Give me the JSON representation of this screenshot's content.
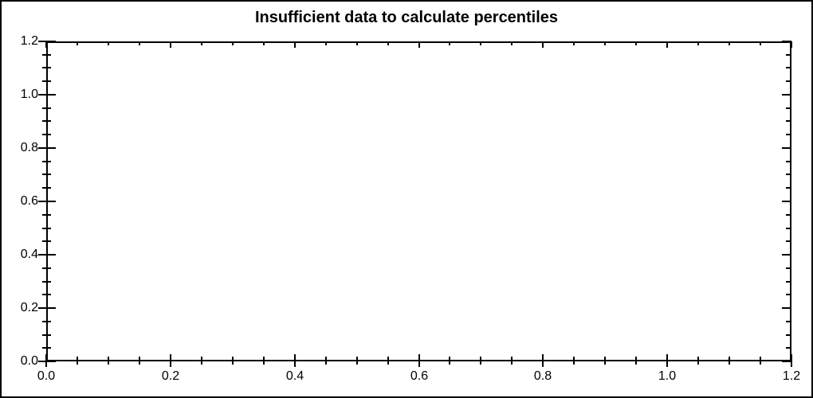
{
  "chart_data": {
    "type": "scatter",
    "title": "Insufficient data to calculate percentiles",
    "series": [],
    "xlim": [
      0,
      1.2
    ],
    "ylim": [
      0,
      1.2
    ],
    "x_ticks": {
      "values": [
        0,
        0.2,
        0.4,
        0.6,
        0.8,
        1.0,
        1.2
      ],
      "labels": [
        "0.0",
        "0.2",
        "0.4",
        "0.6",
        "0.8",
        "1.0",
        "1.2"
      ]
    },
    "y_ticks": {
      "values": [
        0,
        0.2,
        0.4,
        0.6,
        0.8,
        1.0,
        1.2
      ],
      "labels": [
        "0.0",
        "0.2",
        "0.4",
        "0.6",
        "0.8",
        "1.0",
        "1.2"
      ]
    },
    "minor_tick_interval": 0.05,
    "grid": false,
    "frame": "box",
    "legend_position": "none"
  },
  "colors": {
    "foreground": "#000000",
    "background": "#ffffff"
  }
}
